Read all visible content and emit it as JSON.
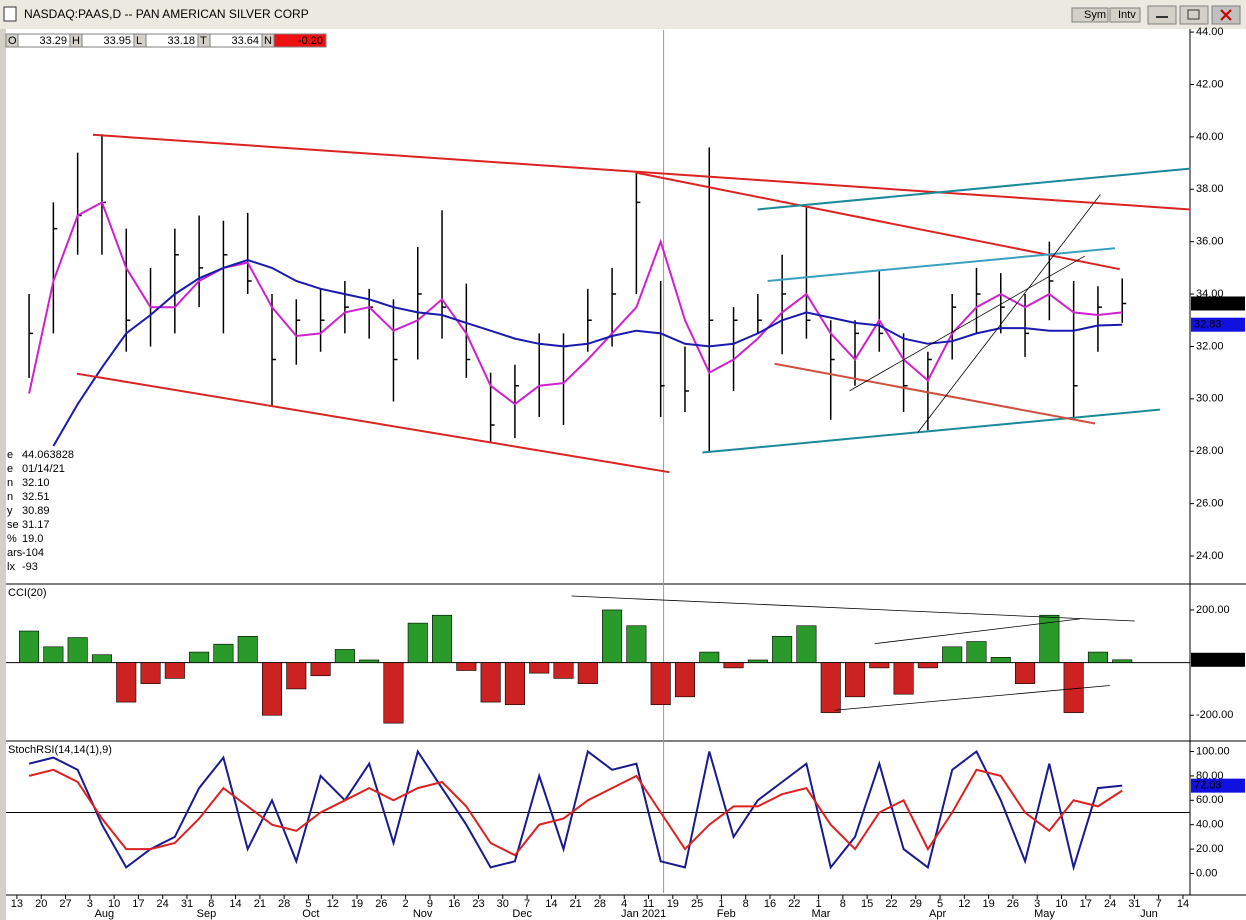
{
  "header": {
    "title": "NASDAQ:PAAS,D -- PAN AMERICAN SILVER CORP",
    "buttons": [
      "Sym",
      "Intv"
    ],
    "quote": [
      {
        "label": "O",
        "value": "33.29"
      },
      {
        "label": "H",
        "value": "33.95"
      },
      {
        "label": "L",
        "value": "33.18"
      },
      {
        "label": "T",
        "value": "33.64"
      },
      {
        "label": "N",
        "value": "-0.20"
      }
    ]
  },
  "info_panel": [
    [
      "e",
      "44.063828"
    ],
    [
      "e",
      "01/14/21"
    ],
    [
      "n",
      "32.10"
    ],
    [
      "n",
      "32.51"
    ],
    [
      "y",
      "30.89"
    ],
    [
      "se",
      "31.17"
    ],
    [
      "%",
      "19.0"
    ],
    [
      "ars",
      "-104"
    ],
    [
      "lx",
      "-93"
    ]
  ],
  "chart_data": [
    {
      "type": "ohlc",
      "xlim": [
        -0.45,
        48.29
      ],
      "ylim": [
        22.97,
        44.08
      ],
      "bar_color": "#000000",
      "divider_x": 26.62,
      "yticks": [
        {
          "value": 24,
          "label": "24.00"
        },
        {
          "value": 26,
          "label": "26.00"
        },
        {
          "value": 28,
          "label": "28.00"
        },
        {
          "value": 30,
          "label": "30.00"
        },
        {
          "value": 32,
          "label": "32.00"
        },
        {
          "value": 34,
          "label": "34.00"
        },
        {
          "value": 36,
          "label": "36.00"
        },
        {
          "value": 38,
          "label": "38.00"
        },
        {
          "value": 40,
          "label": "40.00"
        },
        {
          "value": 42,
          "label": "42.00"
        },
        {
          "value": 44,
          "label": "44.00"
        }
      ],
      "x": [
        0.5,
        1.5,
        2.5,
        3.5,
        4.5,
        5.5,
        6.5,
        7.5,
        8.5,
        9.5,
        10.5,
        11.5,
        12.5,
        13.5,
        14.5,
        15.5,
        16.5,
        17.5,
        18.5,
        19.5,
        20.5,
        21.5,
        22.5,
        23.5,
        24.5,
        25.5,
        26.5,
        27.5,
        28.5,
        29.5,
        30.5,
        31.5,
        32.5,
        33.5,
        34.5,
        35.5,
        36.5,
        37.5,
        38.5,
        39.5,
        40.5,
        41.5,
        42.5,
        43.5,
        44.5,
        45.5
      ],
      "high": [
        34.0,
        37.5,
        39.4,
        40.1,
        36.5,
        35.0,
        36.5,
        37.0,
        36.8,
        37.1,
        34.0,
        33.8,
        34.2,
        34.5,
        34.2,
        33.8,
        35.8,
        37.2,
        34.4,
        31.0,
        31.3,
        32.5,
        32.5,
        34.2,
        35.0,
        38.6,
        34.5,
        32.0,
        39.6,
        33.5,
        34.0,
        35.5,
        37.3,
        33.0,
        33.0,
        34.9,
        32.5,
        31.8,
        34.0,
        35.0,
        34.8,
        34.0,
        36.0,
        34.5,
        34.3,
        34.6
      ],
      "low": [
        30.8,
        32.5,
        35.5,
        35.5,
        31.8,
        32.0,
        32.5,
        33.5,
        32.5,
        34.0,
        29.7,
        31.3,
        31.8,
        32.5,
        32.3,
        29.9,
        31.5,
        32.3,
        30.8,
        28.3,
        28.5,
        29.3,
        29.0,
        31.8,
        32.0,
        34.0,
        29.3,
        29.5,
        28.0,
        30.3,
        32.5,
        31.7,
        32.3,
        29.2,
        30.5,
        31.8,
        29.5,
        28.8,
        31.5,
        32.5,
        32.5,
        31.6,
        33.0,
        29.2,
        31.8,
        32.9
      ],
      "close": [
        32.5,
        36.5,
        37.0,
        37.5,
        33.0,
        33.5,
        35.5,
        35.0,
        35.5,
        34.5,
        31.5,
        33.0,
        33.0,
        33.5,
        33.5,
        31.5,
        34.0,
        33.5,
        31.5,
        29.0,
        30.5,
        30.5,
        32.0,
        33.0,
        34.0,
        37.5,
        30.5,
        30.3,
        33.0,
        33.0,
        33.0,
        34.0,
        33.0,
        31.5,
        32.5,
        32.5,
        30.5,
        31.5,
        33.5,
        34.0,
        33.5,
        32.5,
        34.5,
        30.5,
        33.5,
        33.64
      ],
      "series": [
        {
          "color": "#d020d0",
          "values": [
            30.2,
            34.5,
            37,
            37.5,
            35,
            33.5,
            33.5,
            34.5,
            35,
            35.2,
            33.5,
            32.4,
            32.5,
            33.3,
            33.5,
            32.6,
            33,
            33.8,
            32.5,
            30.5,
            29.8,
            30.5,
            30.6,
            31.5,
            32.5,
            33.5,
            36,
            33,
            31,
            31.5,
            32.3,
            33.3,
            34,
            32.5,
            31.5,
            33,
            31.5,
            30.7,
            32.5,
            33.5,
            34,
            33.5,
            34,
            33.3,
            33.2,
            33.3
          ]
        },
        {
          "color": "#1a1ab0",
          "values": [
            null,
            28.2,
            29.8,
            31.2,
            32.5,
            33.2,
            34,
            34.6,
            35,
            35.3,
            35,
            34.5,
            34.2,
            34,
            33.8,
            33.5,
            33.3,
            33.2,
            32.9,
            32.6,
            32.3,
            32.1,
            32,
            32.1,
            32.4,
            32.6,
            32.5,
            32.1,
            32,
            32.1,
            32.5,
            33,
            33.3,
            33.1,
            32.9,
            32.8,
            32.3,
            32.1,
            32.2,
            32.5,
            32.7,
            32.7,
            32.6,
            32.6,
            32.8,
            32.83
          ]
        }
      ],
      "trendlines": [
        {
          "color": "#dd2222",
          "x": [
            3.13,
            48.3
          ],
          "y": [
            40.08,
            37.23
          ]
        },
        {
          "color": "#dd2222",
          "x": [
            2.47,
            26.86
          ],
          "y": [
            30.96,
            27.2
          ]
        },
        {
          "color": "#dd2222",
          "x": [
            25.46,
            45.4
          ],
          "y": [
            38.64,
            34.95
          ]
        },
        {
          "color": "#1a8a9a",
          "x": [
            30.49,
            48.3
          ],
          "y": [
            37.23,
            38.79
          ]
        },
        {
          "color": "#1a8a9a",
          "x": [
            28.22,
            47.05
          ],
          "y": [
            27.95,
            29.59
          ]
        },
        {
          "color": "#3aa0c0",
          "x": [
            30.9,
            45.2
          ],
          "y": [
            34.5,
            35.75
          ]
        },
        {
          "color": "#d05040",
          "x": [
            31.19,
            44.38
          ],
          "y": [
            31.34,
            29.06
          ]
        },
        {
          "color": "#000000",
          "x": [
            37.08,
            44.6
          ],
          "y": [
            28.71,
            37.8
          ]
        },
        {
          "color": "#000000",
          "x": [
            34.28,
            43.96
          ],
          "y": [
            30.31,
            35.45
          ]
        }
      ],
      "last_labels": [
        {
          "value": 33.64,
          "label": "33.64",
          "color": "#000000"
        },
        {
          "value": 32.83,
          "label": "32.83",
          "color": "#1010e0"
        }
      ]
    },
    {
      "type": "bar",
      "title": "CCI(20)",
      "xlim": [
        -0.45,
        48.29
      ],
      "ylim": [
        -294,
        291
      ],
      "hline": 0,
      "pos_color": "#2a9a2a",
      "neg_color": "#cc2222",
      "yticks": [
        {
          "value": 200,
          "label": "200.00"
        },
        {
          "value": -200,
          "label": "-200.00"
        }
      ],
      "x": [
        0.5,
        1.5,
        2.5,
        3.5,
        4.5,
        5.5,
        6.5,
        7.5,
        8.5,
        9.5,
        10.5,
        11.5,
        12.5,
        13.5,
        14.5,
        15.5,
        16.5,
        17.5,
        18.5,
        19.5,
        20.5,
        21.5,
        22.5,
        23.5,
        24.5,
        25.5,
        26.5,
        27.5,
        28.5,
        29.5,
        30.5,
        31.5,
        32.5,
        33.5,
        34.5,
        35.5,
        36.5,
        37.5,
        38.5,
        39.5,
        40.5,
        41.5,
        42.5,
        43.5,
        44.5,
        45.5
      ],
      "values": [
        120,
        60,
        95,
        30,
        -150,
        -80,
        -60,
        40,
        70,
        100,
        -200,
        -100,
        -50,
        50,
        10,
        -230,
        150,
        180,
        -30,
        -150,
        -160,
        -40,
        -60,
        -80,
        200,
        140,
        -160,
        -130,
        40,
        -20,
        10,
        100,
        140,
        -190,
        -130,
        -20,
        -120,
        -20,
        60,
        80,
        20,
        -80,
        180,
        -190,
        40,
        10.67
      ],
      "trendlines": [
        {
          "color": "#000000",
          "x": [
            22.83,
            46.02
          ],
          "y": [
            253,
            158
          ]
        },
        {
          "color": "#000000",
          "x": [
            35.31,
            43.76
          ],
          "y": [
            72,
            166
          ]
        },
        {
          "color": "#000000",
          "x": [
            33.66,
            44.99
          ],
          "y": [
            -181,
            -87
          ]
        }
      ],
      "last_labels": [
        {
          "value": 10.67,
          "label": "10.67",
          "color": "#000000"
        }
      ]
    },
    {
      "type": "line",
      "title": "StochRSI(14,14(1),9)",
      "xlim": [
        -0.45,
        48.29
      ],
      "ylim": [
        -16,
        107
      ],
      "hline": 50,
      "yticks": [
        {
          "value": 0,
          "label": "0.00"
        },
        {
          "value": 20,
          "label": "20.00"
        },
        {
          "value": 40,
          "label": "40.00"
        },
        {
          "value": 60,
          "label": "60.00"
        },
        {
          "value": 80,
          "label": "80.00"
        },
        {
          "value": 100,
          "label": "100.00"
        }
      ],
      "x": [
        0.5,
        1.5,
        2.5,
        3.5,
        4.5,
        5.5,
        6.5,
        7.5,
        8.5,
        9.5,
        10.5,
        11.5,
        12.5,
        13.5,
        14.5,
        15.5,
        16.5,
        17.5,
        18.5,
        19.5,
        20.5,
        21.5,
        22.5,
        23.5,
        24.5,
        25.5,
        26.5,
        27.5,
        28.5,
        29.5,
        30.5,
        31.5,
        32.5,
        33.5,
        34.5,
        35.5,
        36.5,
        37.5,
        38.5,
        39.5,
        40.5,
        41.5,
        42.5,
        43.5,
        44.5,
        45.5
      ],
      "series": [
        {
          "color": "#1a1a90",
          "values": [
            90,
            95,
            85,
            40,
            5,
            20,
            30,
            70,
            95,
            20,
            60,
            10,
            80,
            60,
            90,
            25,
            100,
            70,
            40,
            5,
            10,
            80,
            20,
            100,
            85,
            90,
            10,
            5,
            100,
            30,
            60,
            75,
            90,
            5,
            30,
            90,
            20,
            5,
            85,
            100,
            60,
            10,
            90,
            5,
            70,
            72.03
          ]
        },
        {
          "color": "#dd2020",
          "values": [
            80,
            85,
            75,
            45,
            20,
            20,
            25,
            45,
            70,
            55,
            40,
            35,
            50,
            60,
            70,
            60,
            70,
            75,
            55,
            25,
            15,
            40,
            45,
            60,
            70,
            80,
            50,
            20,
            40,
            55,
            55,
            65,
            70,
            40,
            20,
            50,
            60,
            20,
            50,
            85,
            80,
            50,
            35,
            60,
            55,
            68
          ]
        }
      ],
      "last_labels": [
        {
          "value": 72.03,
          "label": "72.03",
          "color": "#1010e0"
        }
      ],
      "xticks": [
        {
          "value": 0,
          "label": "13"
        },
        {
          "value": 1,
          "label": "20"
        },
        {
          "value": 2,
          "label": "27"
        },
        {
          "value": 3,
          "label": "3"
        },
        {
          "value": 4,
          "label": "10"
        },
        {
          "value": 5,
          "label": "17"
        },
        {
          "value": 6,
          "label": "24"
        },
        {
          "value": 7,
          "label": "31"
        },
        {
          "value": 8,
          "label": "8"
        },
        {
          "value": 9,
          "label": "14"
        },
        {
          "value": 10,
          "label": "21"
        },
        {
          "value": 11,
          "label": "28"
        },
        {
          "value": 12,
          "label": "5"
        },
        {
          "value": 13,
          "label": "12"
        },
        {
          "value": 14,
          "label": "19"
        },
        {
          "value": 15,
          "label": "26"
        },
        {
          "value": 16,
          "label": "2"
        },
        {
          "value": 17,
          "label": "9"
        },
        {
          "value": 18,
          "label": "16"
        },
        {
          "value": 19,
          "label": "23"
        },
        {
          "value": 20,
          "label": "30"
        },
        {
          "value": 21,
          "label": "7"
        },
        {
          "value": 22,
          "label": "14"
        },
        {
          "value": 23,
          "label": "21"
        },
        {
          "value": 24,
          "label": "28"
        },
        {
          "value": 25,
          "label": "4"
        },
        {
          "value": 26,
          "label": "11"
        },
        {
          "value": 27,
          "label": "19"
        },
        {
          "value": 28,
          "label": "25"
        },
        {
          "value": 29,
          "label": "1"
        },
        {
          "value": 30,
          "label": "8"
        },
        {
          "value": 31,
          "label": "16"
        },
        {
          "value": 32,
          "label": "22"
        },
        {
          "value": 33,
          "label": "1"
        },
        {
          "value": 34,
          "label": "8"
        },
        {
          "value": 35,
          "label": "15"
        },
        {
          "value": 36,
          "label": "22"
        },
        {
          "value": 37,
          "label": "29"
        },
        {
          "value": 38,
          "label": "5"
        },
        {
          "value": 39,
          "label": "12"
        },
        {
          "value": 40,
          "label": "19"
        },
        {
          "value": 41,
          "label": "26"
        },
        {
          "value": 42,
          "label": "3"
        },
        {
          "value": 43,
          "label": "10"
        },
        {
          "value": 44,
          "label": "17"
        },
        {
          "value": 45,
          "label": "24"
        },
        {
          "value": 46,
          "label": "31"
        },
        {
          "value": 47,
          "label": "7"
        },
        {
          "value": 48,
          "label": "14"
        }
      ],
      "xmonths": [
        {
          "value": 3.6,
          "label": "Aug"
        },
        {
          "value": 7.8,
          "label": "Sep"
        },
        {
          "value": 12.1,
          "label": "Oct"
        },
        {
          "value": 16.7,
          "label": "Nov"
        },
        {
          "value": 20.8,
          "label": "Dec"
        },
        {
          "value": 25.8,
          "label": "Jan 2021"
        },
        {
          "value": 29.2,
          "label": "Feb"
        },
        {
          "value": 33.1,
          "label": "Mar"
        },
        {
          "value": 37.9,
          "label": "Apr"
        },
        {
          "value": 42.3,
          "label": "May"
        },
        {
          "value": 46.6,
          "label": "Jun"
        }
      ]
    }
  ]
}
